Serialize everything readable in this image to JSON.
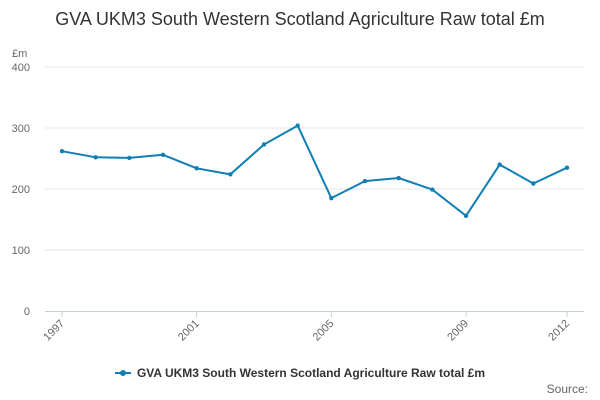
{
  "colors": {
    "series": "#0f7fb5",
    "grid": "#e6e6e6",
    "axis_text": "#666666"
  },
  "source_label": "Source:",
  "chart_data": {
    "type": "line",
    "title": "GVA UKM3 South Western Scotland Agriculture Raw total £m",
    "ylabel": "£m",
    "xlabel": "",
    "ylim": [
      0,
      400
    ],
    "yticks": [
      0,
      100,
      200,
      300,
      400
    ],
    "xlim": [
      1997,
      2012
    ],
    "xticks": [
      1997,
      2001,
      2005,
      2009,
      2012
    ],
    "grid": true,
    "legend_position": "bottom",
    "series": [
      {
        "name": "GVA UKM3 South Western Scotland Agriculture Raw total £m",
        "x": [
          1997,
          1998,
          1999,
          2000,
          2001,
          2002,
          2003,
          2004,
          2005,
          2006,
          2007,
          2008,
          2009,
          2010,
          2011,
          2012
        ],
        "values": [
          262,
          252,
          251,
          256,
          234,
          224,
          273,
          304,
          185,
          213,
          218,
          199,
          156,
          240,
          209,
          235
        ]
      }
    ]
  }
}
